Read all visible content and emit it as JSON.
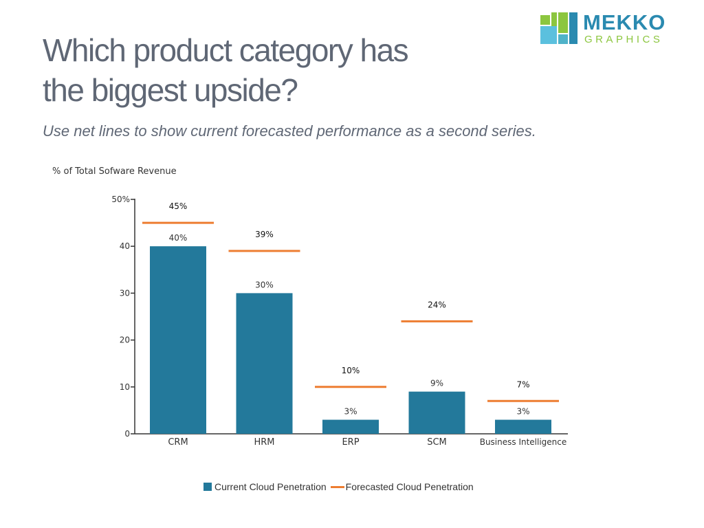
{
  "header": {
    "title_line1": "Which product category has",
    "title_line2": "the biggest upside?",
    "subtitle": "Use net lines to show current forecasted performance as a second series."
  },
  "logo": {
    "word1": "MEKKO",
    "word2": "GRAPHICS",
    "colors": [
      "#8cc63f",
      "#2a8ab0",
      "#5bc0de",
      "#4fb3c9"
    ]
  },
  "colors": {
    "bar": "#23799b",
    "line": "#ed7d31",
    "axis": "#333333"
  },
  "chart_data": {
    "type": "bar",
    "ylabel": "% of Total Sofware Revenue",
    "ylim": [
      0,
      50
    ],
    "yticks": [
      0,
      10,
      20,
      30,
      40,
      50
    ],
    "ytick_labels": [
      "0",
      "10",
      "20",
      "30",
      "40",
      "50%"
    ],
    "categories": [
      "CRM",
      "HRM",
      "ERP",
      "SCM",
      "Business Intelligence"
    ],
    "series": [
      {
        "name": "Current Cloud Penetration",
        "kind": "bar",
        "values": [
          40,
          30,
          3,
          9,
          3
        ],
        "labels": [
          "40%",
          "30%",
          "3%",
          "9%",
          "3%"
        ]
      },
      {
        "name": "Forecasted Cloud Penetration",
        "kind": "net-line",
        "values": [
          45,
          39,
          10,
          24,
          7
        ],
        "labels": [
          "45%",
          "39%",
          "10%",
          "24%",
          "7%"
        ]
      }
    ],
    "legend_position": "bottom",
    "grid": false
  }
}
